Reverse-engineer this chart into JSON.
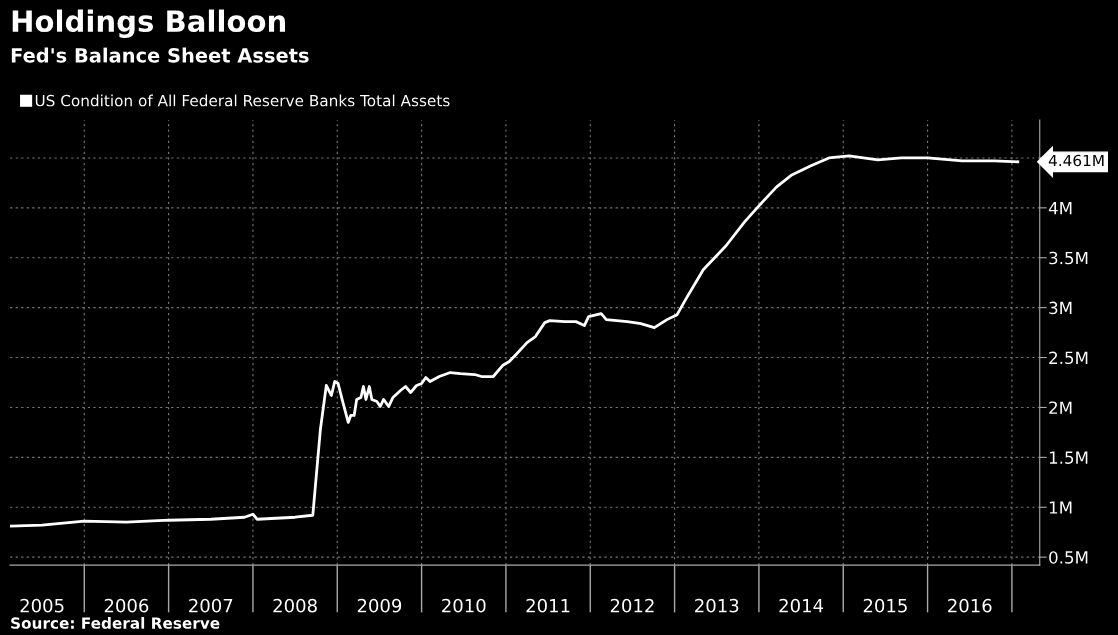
{
  "chart_data": {
    "type": "line",
    "title": "Holdings Balloon",
    "subtitle": "Fed's Balance Sheet Assets",
    "annotations": [
      "4.461M",
      "Source: Federal Reserve"
    ],
    "legend": "top left",
    "grid": true,
    "marker": "none",
    "line_style": "solid",
    "series": [
      {
        "name": "US Condition of All Federal Reserve Banks Total Assets",
        "color": "#ffffff",
        "x": [
          2005.12,
          2005.5,
          2006.0,
          2006.5,
          2007.0,
          2007.5,
          2007.9,
          2008.0,
          2008.05,
          2008.5,
          2008.71,
          2008.8,
          2008.87,
          2008.93,
          2008.97,
          2009.01,
          2009.07,
          2009.13,
          2009.16,
          2009.2,
          2009.23,
          2009.28,
          2009.31,
          2009.34,
          2009.38,
          2009.41,
          2009.47,
          2009.51,
          2009.55,
          2009.61,
          2009.66,
          2009.75,
          2009.81,
          2009.87,
          2009.94,
          2010.0,
          2010.05,
          2010.1,
          2010.21,
          2010.34,
          2010.46,
          2010.63,
          2010.71,
          2010.85,
          2010.96,
          2011.04,
          2011.12,
          2011.25,
          2011.35,
          2011.46,
          2011.52,
          2011.7,
          2011.83,
          2011.93,
          2011.98,
          2012.13,
          2012.19,
          2012.44,
          2012.6,
          2012.76,
          2012.91,
          2013.03,
          2013.13,
          2013.34,
          2013.61,
          2013.83,
          2014.0,
          2014.21,
          2014.39,
          2014.61,
          2014.83,
          2015.07,
          2015.41,
          2015.69,
          2016.0,
          2016.41,
          2016.79,
          2017.07
        ],
        "values": [
          0.81,
          0.82,
          0.86,
          0.85,
          0.87,
          0.88,
          0.9,
          0.93,
          0.88,
          0.9,
          0.92,
          1.78,
          2.22,
          2.12,
          2.26,
          2.24,
          2.04,
          1.85,
          1.92,
          1.92,
          2.08,
          2.1,
          2.21,
          2.08,
          2.21,
          2.08,
          2.06,
          2.01,
          2.08,
          2.01,
          2.1,
          2.17,
          2.21,
          2.15,
          2.22,
          2.24,
          2.3,
          2.26,
          2.31,
          2.35,
          2.34,
          2.33,
          2.31,
          2.31,
          2.42,
          2.46,
          2.53,
          2.65,
          2.71,
          2.85,
          2.87,
          2.86,
          2.86,
          2.82,
          2.91,
          2.94,
          2.88,
          2.86,
          2.84,
          2.8,
          2.88,
          2.93,
          3.08,
          3.38,
          3.62,
          3.86,
          4.02,
          4.21,
          4.33,
          4.42,
          4.5,
          4.52,
          4.48,
          4.5,
          4.5,
          4.47,
          4.47,
          4.461
        ]
      }
    ],
    "xlim": [
      2005.12,
      2017.33
    ],
    "xticks": [
      {
        "value": 2006,
        "label": null
      },
      {
        "value": 2007,
        "label": null
      },
      {
        "value": 2008,
        "label": null
      },
      {
        "value": 2009,
        "label": null
      },
      {
        "value": 2010,
        "label": null
      },
      {
        "value": 2011,
        "label": null
      },
      {
        "value": 2012,
        "label": null
      },
      {
        "value": 2013,
        "label": null
      },
      {
        "value": 2014,
        "label": null
      },
      {
        "value": 2015,
        "label": null
      },
      {
        "value": 2016,
        "label": null
      },
      {
        "value": 2017,
        "label": null
      },
      {
        "value": 2005.5,
        "label": "2005"
      },
      {
        "value": 2006.5,
        "label": "2006"
      },
      {
        "value": 2007.5,
        "label": "2007"
      },
      {
        "value": 2008.5,
        "label": "2008"
      },
      {
        "value": 2009.5,
        "label": "2009"
      },
      {
        "value": 2010.5,
        "label": "2010"
      },
      {
        "value": 2011.5,
        "label": "2011"
      },
      {
        "value": 2012.5,
        "label": "2012"
      },
      {
        "value": 2013.5,
        "label": "2013"
      },
      {
        "value": 2014.5,
        "label": "2014"
      },
      {
        "value": 2015.5,
        "label": "2015"
      },
      {
        "value": 2016.5,
        "label": "2016"
      }
    ],
    "ylim": [
      0.42,
      4.88
    ],
    "yticks": [
      {
        "value": 0.5,
        "label": "0.5M"
      },
      {
        "value": 1,
        "label": "1M"
      },
      {
        "value": 1.5,
        "label": "1.5M"
      },
      {
        "value": 2,
        "label": "2M"
      },
      {
        "value": 2.5,
        "label": "2.5M"
      },
      {
        "value": 3,
        "label": "3M"
      },
      {
        "value": 3.5,
        "label": "3.5M"
      },
      {
        "value": 4,
        "label": "4M"
      },
      {
        "value": 4.5,
        "label": null
      }
    ]
  }
}
